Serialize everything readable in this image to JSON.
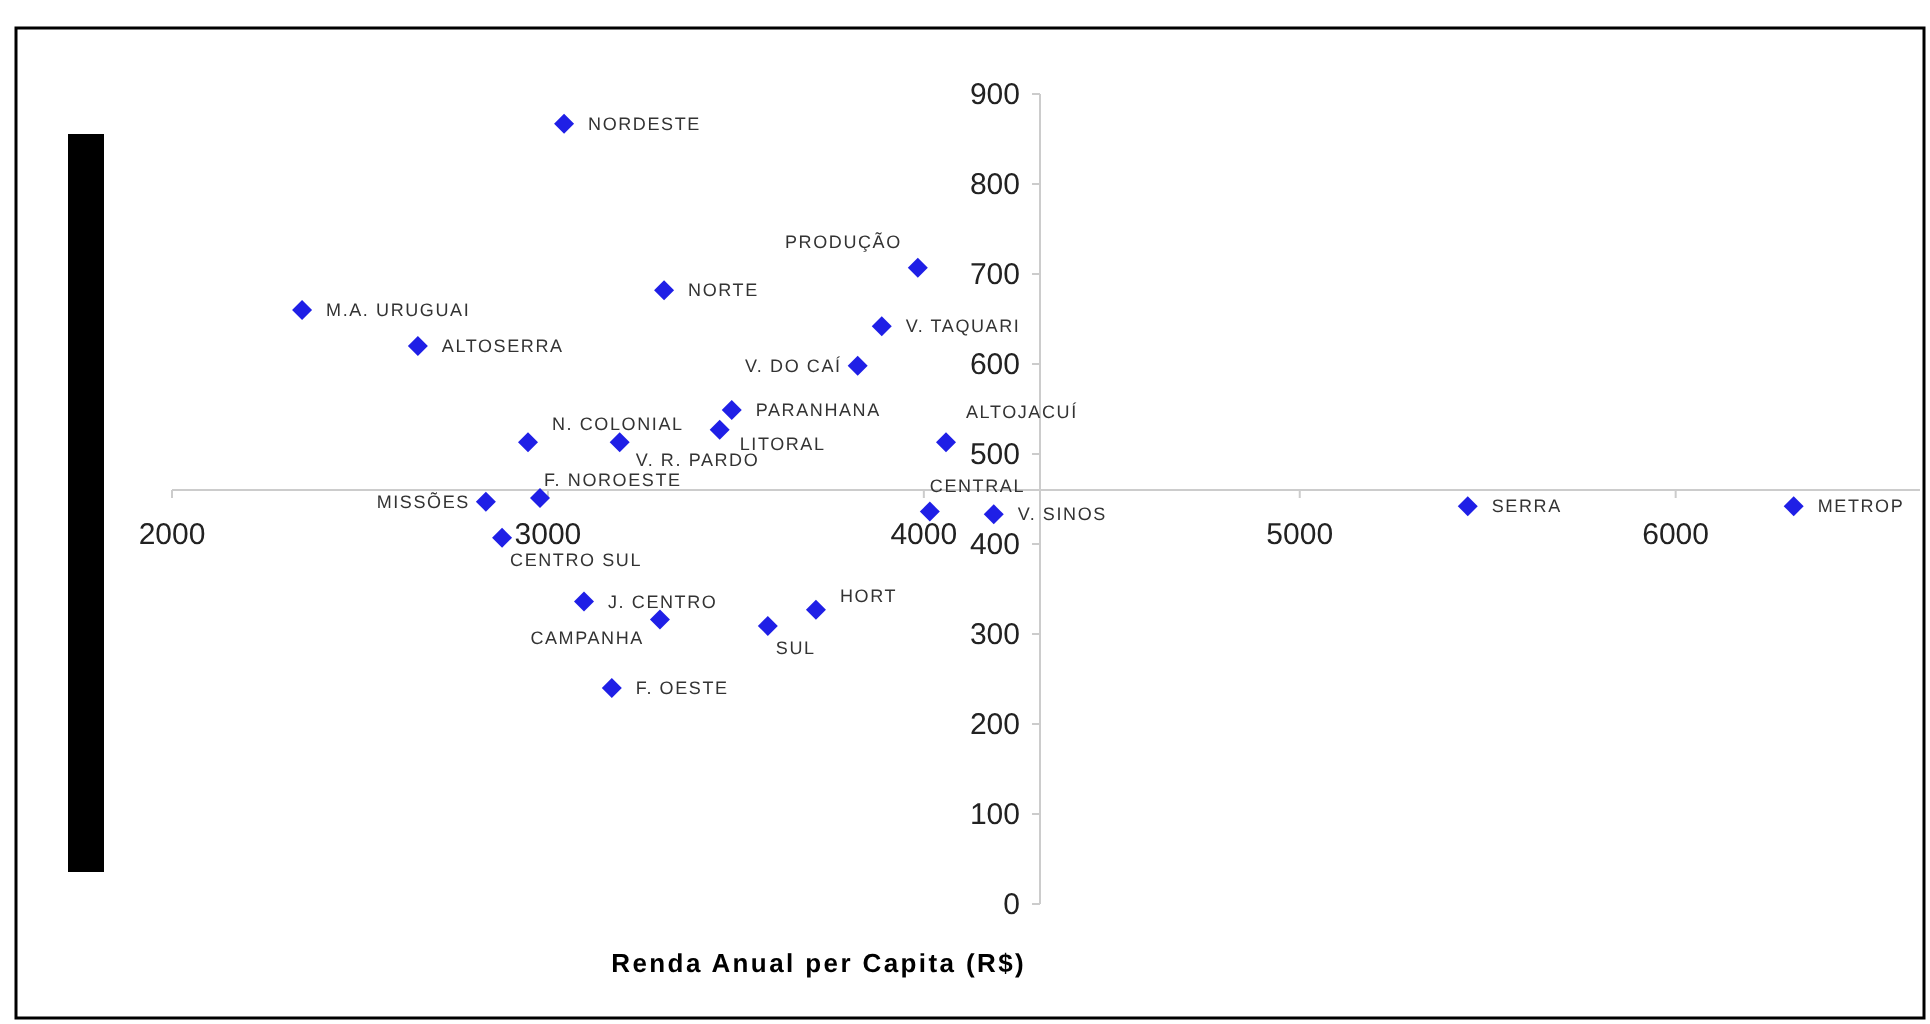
{
  "chart_data": {
    "type": "scatter",
    "xlabel": "Renda Anual per Capita (R$)",
    "xlim": [
      2000,
      6650
    ],
    "ylim": [
      0,
      900
    ],
    "xticks": [
      2000,
      3000,
      4000,
      5000,
      6000
    ],
    "yticks": [
      0,
      100,
      200,
      300,
      400,
      500,
      600,
      700,
      800,
      900
    ],
    "grid": false,
    "marker": "diamond",
    "annotations": [
      {
        "text": "NORDESTE",
        "x": 3043,
        "y": 867
      },
      {
        "text": "M.A. URUGUAI",
        "x": 2346,
        "y": 660
      },
      {
        "text": "ALTOSERRA",
        "x": 2654,
        "y": 620
      },
      {
        "text": "NORTE",
        "x": 3309,
        "y": 682
      },
      {
        "text": "PRODUÇÃO",
        "x": 3984,
        "y": 707
      },
      {
        "text": "V. TAQUARI",
        "x": 3888,
        "y": 642
      },
      {
        "text": "V. DO CAÍ",
        "x": 3824,
        "y": 598
      },
      {
        "text": "PARANHANA",
        "x": 3489,
        "y": 549
      },
      {
        "text": "LITORAL",
        "x": 3457,
        "y": 527
      },
      {
        "text": "N. COLONIAL",
        "x": 2947,
        "y": 513
      },
      {
        "text": "V. R. PARDO",
        "x": 3191,
        "y": 513
      },
      {
        "text": "ALTOJACUÍ",
        "x": 4059,
        "y": 513
      },
      {
        "text": "F. NOROESTE",
        "x": 2979,
        "y": 451
      },
      {
        "text": "MISSÕES",
        "x": 2835,
        "y": 447
      },
      {
        "text": "CENTRO SUL",
        "x": 2878,
        "y": 407
      },
      {
        "text": "CENTRAL",
        "x": 4016,
        "y": 436
      },
      {
        "text": "V. SINOS",
        "x": 4186,
        "y": 433
      },
      {
        "text": "SERRA",
        "x": 5447,
        "y": 442
      },
      {
        "text": "METROP",
        "x": 6314,
        "y": 442
      },
      {
        "text": "J. CENTRO",
        "x": 3096,
        "y": 336
      },
      {
        "text": "CAMPANHA",
        "x": 3298,
        "y": 316
      },
      {
        "text": "SUL",
        "x": 3585,
        "y": 309
      },
      {
        "text": "HORT",
        "x": 3713,
        "y": 327
      },
      {
        "text": "F. OESTE",
        "x": 3170,
        "y": 240
      }
    ],
    "series": [
      {
        "color": "#1f1fe6",
        "x": [
          3043,
          2346,
          2654,
          3309,
          3984,
          3888,
          3824,
          3489,
          3457,
          2947,
          3191,
          4059,
          2979,
          2835,
          2878,
          4016,
          4186,
          5447,
          6314,
          3096,
          3298,
          3585,
          3713,
          3170
        ],
        "values": [
          867,
          660,
          620,
          682,
          707,
          642,
          598,
          549,
          527,
          513,
          513,
          513,
          451,
          447,
          407,
          436,
          433,
          442,
          442,
          336,
          316,
          309,
          327,
          240
        ]
      }
    ]
  }
}
